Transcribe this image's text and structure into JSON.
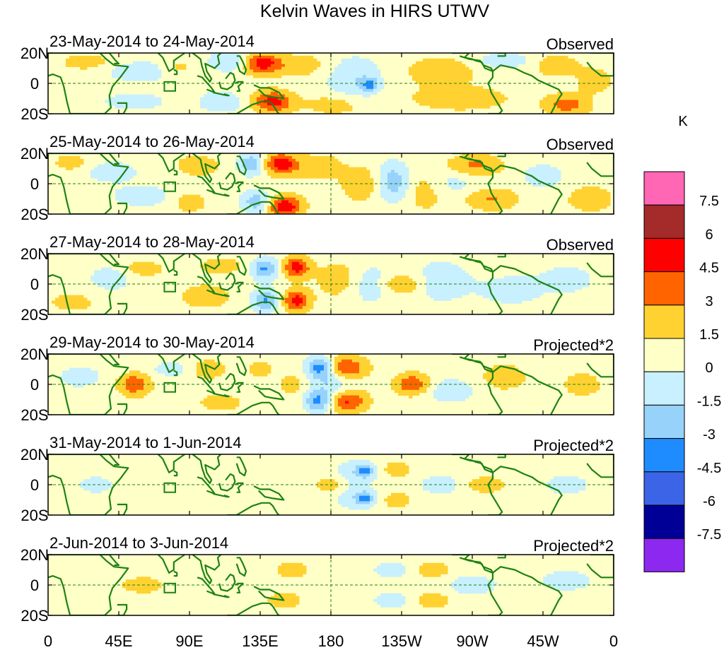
{
  "chart_data": {
    "type": "heatmap",
    "title": "Kelvin Waves in HIRS UTWV",
    "units": "K",
    "x_range_deg": [
      0,
      360
    ],
    "y_range_deg": [
      -20,
      20
    ],
    "x_ticks": [
      {
        "label": "0",
        "lon": 0
      },
      {
        "label": "45E",
        "lon": 45
      },
      {
        "label": "90E",
        "lon": 90
      },
      {
        "label": "135E",
        "lon": 135
      },
      {
        "label": "180",
        "lon": 180
      },
      {
        "label": "135W",
        "lon": 225
      },
      {
        "label": "90W",
        "lon": 270
      },
      {
        "label": "45W",
        "lon": 315
      },
      {
        "label": "0",
        "lon": 360
      }
    ],
    "y_ticks": [
      {
        "label": "20N",
        "lat": 20
      },
      {
        "label": "0",
        "lat": 0
      },
      {
        "label": "20S",
        "lat": -20
      }
    ],
    "reference_lines": {
      "equator_lat": 0,
      "dateline_lon": 180
    },
    "box_marker": {
      "lon": [
        74,
        81
      ],
      "lat": [
        -5,
        1
      ]
    },
    "panels": [
      {
        "date_range": "23-May-2014 to 24-May-2014",
        "kind": "Observed",
        "blobs": [
          {
            "lon": 136,
            "lat": 13,
            "v": 4.6,
            "sx": 8,
            "sy": 5
          },
          {
            "lon": 143,
            "lat": -12,
            "v": 4.4,
            "sx": 9,
            "sy": 5
          },
          {
            "lon": 115,
            "lat": 15,
            "v": -2.2,
            "sx": 9,
            "sy": 5
          },
          {
            "lon": 110,
            "lat": -12,
            "v": -2.0,
            "sx": 10,
            "sy": 5
          },
          {
            "lon": 160,
            "lat": 12,
            "v": 1.8,
            "sx": 12,
            "sy": 5
          },
          {
            "lon": 195,
            "lat": 3,
            "v": -2.2,
            "sx": 12,
            "sy": 10
          },
          {
            "lon": 205,
            "lat": -1,
            "v": -3.2,
            "sx": 4,
            "sy": 3
          },
          {
            "lon": 250,
            "lat": 8,
            "v": 1.8,
            "sx": 16,
            "sy": 7
          },
          {
            "lon": 262,
            "lat": -10,
            "v": 2.2,
            "sx": 20,
            "sy": 5
          },
          {
            "lon": 330,
            "lat": -14,
            "v": 3.0,
            "sx": 10,
            "sy": 5
          },
          {
            "lon": 323,
            "lat": 12,
            "v": 1.9,
            "sx": 10,
            "sy": 5
          },
          {
            "lon": 60,
            "lat": 8,
            "v": -1.7,
            "sx": 18,
            "sy": 5
          },
          {
            "lon": 55,
            "lat": -12,
            "v": -1.7,
            "sx": 14,
            "sy": 4
          },
          {
            "lon": 25,
            "lat": 14,
            "v": 1.6,
            "sx": 12,
            "sy": 4
          },
          {
            "lon": 348,
            "lat": 2,
            "v": 1.6,
            "sx": 8,
            "sy": 6
          },
          {
            "lon": 82,
            "lat": 10,
            "v": 1.6,
            "sx": 8,
            "sy": 4
          },
          {
            "lon": 183,
            "lat": -14,
            "v": 1.6,
            "sx": 14,
            "sy": 5
          },
          {
            "lon": 290,
            "lat": 15,
            "v": -1.6,
            "sx": 14,
            "sy": 4
          }
        ]
      },
      {
        "date_range": "25-May-2014 to 26-May-2014",
        "kind": "Observed",
        "blobs": [
          {
            "lon": 148,
            "lat": 13,
            "v": 4.8,
            "sx": 8,
            "sy": 5
          },
          {
            "lon": 150,
            "lat": -15,
            "v": 5.2,
            "sx": 8,
            "sy": 5
          },
          {
            "lon": 130,
            "lat": 13,
            "v": -3.8,
            "sx": 6,
            "sy": 5
          },
          {
            "lon": 133,
            "lat": -12,
            "v": -3.5,
            "sx": 7,
            "sy": 5
          },
          {
            "lon": 173,
            "lat": 11,
            "v": 1.8,
            "sx": 10,
            "sy": 6
          },
          {
            "lon": 200,
            "lat": 0,
            "v": 2.0,
            "sx": 9,
            "sy": 8
          },
          {
            "lon": 220,
            "lat": 1,
            "v": -3.6,
            "sx": 8,
            "sy": 9
          },
          {
            "lon": 240,
            "lat": -3,
            "v": 1.9,
            "sx": 12,
            "sy": 10
          },
          {
            "lon": 272,
            "lat": 12,
            "v": 2.6,
            "sx": 12,
            "sy": 5
          },
          {
            "lon": 282,
            "lat": -10,
            "v": 2.4,
            "sx": 12,
            "sy": 5
          },
          {
            "lon": 255,
            "lat": 0,
            "v": -1.8,
            "sx": 12,
            "sy": 7
          },
          {
            "lon": 345,
            "lat": -10,
            "v": 1.9,
            "sx": 10,
            "sy": 6
          },
          {
            "lon": 95,
            "lat": 12,
            "v": 1.7,
            "sx": 10,
            "sy": 5
          },
          {
            "lon": 90,
            "lat": -12,
            "v": 1.6,
            "sx": 8,
            "sy": 5
          },
          {
            "lon": 60,
            "lat": -8,
            "v": -1.7,
            "sx": 14,
            "sy": 5
          },
          {
            "lon": 40,
            "lat": 8,
            "v": -1.7,
            "sx": 12,
            "sy": 5
          },
          {
            "lon": 15,
            "lat": 14,
            "v": 1.6,
            "sx": 8,
            "sy": 4
          },
          {
            "lon": 315,
            "lat": 5,
            "v": -1.6,
            "sx": 10,
            "sy": 6
          }
        ]
      },
      {
        "date_range": "27-May-2014 to 28-May-2014",
        "kind": "Observed",
        "blobs": [
          {
            "lon": 158,
            "lat": 11,
            "v": 4.5,
            "sx": 6,
            "sy": 5
          },
          {
            "lon": 158,
            "lat": -11,
            "v": 4.5,
            "sx": 6,
            "sy": 5
          },
          {
            "lon": 138,
            "lat": 10,
            "v": -4.0,
            "sx": 6,
            "sy": 5
          },
          {
            "lon": 138,
            "lat": -11,
            "v": -4.0,
            "sx": 6,
            "sy": 5
          },
          {
            "lon": 185,
            "lat": 3,
            "v": 1.8,
            "sx": 10,
            "sy": 8
          },
          {
            "lon": 205,
            "lat": 0,
            "v": -1.8,
            "sx": 10,
            "sy": 9
          },
          {
            "lon": 225,
            "lat": 0,
            "v": 2.4,
            "sx": 10,
            "sy": 5
          },
          {
            "lon": 250,
            "lat": 2,
            "v": -1.7,
            "sx": 14,
            "sy": 10
          },
          {
            "lon": 295,
            "lat": -4,
            "v": -1.6,
            "sx": 14,
            "sy": 7
          },
          {
            "lon": 330,
            "lat": 3,
            "v": -1.7,
            "sx": 12,
            "sy": 6
          },
          {
            "lon": 100,
            "lat": -8,
            "v": 1.6,
            "sx": 12,
            "sy": 6
          },
          {
            "lon": 110,
            "lat": 12,
            "v": 1.6,
            "sx": 10,
            "sy": 4
          },
          {
            "lon": 40,
            "lat": 4,
            "v": -1.6,
            "sx": 10,
            "sy": 6
          },
          {
            "lon": 60,
            "lat": 10,
            "v": 1.6,
            "sx": 10,
            "sy": 4
          },
          {
            "lon": 15,
            "lat": -12,
            "v": 1.6,
            "sx": 10,
            "sy": 4
          }
        ]
      },
      {
        "date_range": "29-May-2014 to 30-May-2014",
        "kind": "Projected*2",
        "blobs": [
          {
            "lon": 190,
            "lat": 11,
            "v": 3.8,
            "sx": 9,
            "sy": 5
          },
          {
            "lon": 190,
            "lat": -11,
            "v": 4.0,
            "sx": 9,
            "sy": 5
          },
          {
            "lon": 173,
            "lat": 11,
            "v": -4.6,
            "sx": 6,
            "sy": 5
          },
          {
            "lon": 172,
            "lat": -11,
            "v": -4.6,
            "sx": 6,
            "sy": 5
          },
          {
            "lon": 232,
            "lat": 0,
            "v": 3.6,
            "sx": 8,
            "sy": 5
          },
          {
            "lon": 180,
            "lat": 0,
            "v": -2.0,
            "sx": 8,
            "sy": 6
          },
          {
            "lon": 55,
            "lat": 0,
            "v": 3.6,
            "sx": 7,
            "sy": 5
          },
          {
            "lon": 255,
            "lat": -4,
            "v": -1.7,
            "sx": 12,
            "sy": 6
          },
          {
            "lon": 290,
            "lat": 5,
            "v": 1.8,
            "sx": 10,
            "sy": 6
          },
          {
            "lon": 340,
            "lat": 0,
            "v": 1.9,
            "sx": 8,
            "sy": 5
          },
          {
            "lon": 155,
            "lat": 0,
            "v": 1.6,
            "sx": 6,
            "sy": 5
          },
          {
            "lon": 100,
            "lat": 10,
            "v": 1.6,
            "sx": 10,
            "sy": 5
          },
          {
            "lon": 110,
            "lat": -12,
            "v": 1.6,
            "sx": 10,
            "sy": 4
          },
          {
            "lon": 80,
            "lat": 10,
            "v": -1.6,
            "sx": 10,
            "sy": 4
          },
          {
            "lon": 20,
            "lat": 5,
            "v": -1.6,
            "sx": 10,
            "sy": 5
          },
          {
            "lon": 135,
            "lat": 10,
            "v": 1.6,
            "sx": 6,
            "sy": 4
          }
        ]
      },
      {
        "date_range": "31-May-2014 to 1-Jun-2014",
        "kind": "Projected*2",
        "blobs": [
          {
            "lon": 202,
            "lat": 9,
            "v": -3.2,
            "sx": 4,
            "sy": 3
          },
          {
            "lon": 202,
            "lat": -9,
            "v": -3.2,
            "sx": 4,
            "sy": 3
          },
          {
            "lon": 195,
            "lat": 8,
            "v": -1.7,
            "sx": 9,
            "sy": 6
          },
          {
            "lon": 195,
            "lat": -8,
            "v": -1.7,
            "sx": 9,
            "sy": 6
          },
          {
            "lon": 222,
            "lat": 10,
            "v": 1.6,
            "sx": 7,
            "sy": 4
          },
          {
            "lon": 222,
            "lat": -10,
            "v": 1.6,
            "sx": 7,
            "sy": 4
          },
          {
            "lon": 278,
            "lat": 0,
            "v": 1.6,
            "sx": 10,
            "sy": 4
          },
          {
            "lon": 250,
            "lat": 0,
            "v": -1.6,
            "sx": 10,
            "sy": 5
          },
          {
            "lon": 30,
            "lat": 0,
            "v": -1.6,
            "sx": 8,
            "sy": 4
          },
          {
            "lon": 180,
            "lat": 0,
            "v": 1.6,
            "sx": 8,
            "sy": 4
          },
          {
            "lon": 330,
            "lat": 0,
            "v": -1.6,
            "sx": 10,
            "sy": 5
          }
        ]
      },
      {
        "date_range": "2-Jun-2014 to 3-Jun-2014",
        "kind": "Projected*2",
        "blobs": [
          {
            "lon": 245,
            "lat": 10,
            "v": 1.8,
            "sx": 8,
            "sy": 4
          },
          {
            "lon": 245,
            "lat": -10,
            "v": 1.8,
            "sx": 8,
            "sy": 4
          },
          {
            "lon": 218,
            "lat": 10,
            "v": -1.7,
            "sx": 8,
            "sy": 4
          },
          {
            "lon": 218,
            "lat": -10,
            "v": -1.7,
            "sx": 8,
            "sy": 4
          },
          {
            "lon": 155,
            "lat": 10,
            "v": 1.6,
            "sx": 8,
            "sy": 4
          },
          {
            "lon": 150,
            "lat": -10,
            "v": 1.6,
            "sx": 8,
            "sy": 4
          },
          {
            "lon": 270,
            "lat": 0,
            "v": -1.6,
            "sx": 12,
            "sy": 5
          },
          {
            "lon": 330,
            "lat": 3,
            "v": -1.6,
            "sx": 12,
            "sy": 5
          },
          {
            "lon": 60,
            "lat": 0,
            "v": 1.6,
            "sx": 10,
            "sy": 4
          }
        ]
      }
    ],
    "colorbar": {
      "label": "K",
      "tick_labels": [
        "7.5",
        "6",
        "4.5",
        "3",
        "1.5",
        "0",
        "-1.5",
        "-3",
        "-4.5",
        "-6",
        "-7.5"
      ],
      "levels": [
        7.5,
        6,
        4.5,
        3,
        1.5,
        0,
        -1.5,
        -3,
        -4.5,
        -6,
        -7.5
      ],
      "colors": [
        "#ff66b4",
        "#a52a2a",
        "#ff0000",
        "#ff6400",
        "#ffd232",
        "#ffffc8",
        "#c8f0ff",
        "#96d2fa",
        "#1e8cff",
        "#3c64e6",
        "#000096",
        "#8c28f0"
      ]
    },
    "coastline_color": "#1e8214",
    "border_color": "#1e8214",
    "guide_line_color": "#1e8214"
  }
}
